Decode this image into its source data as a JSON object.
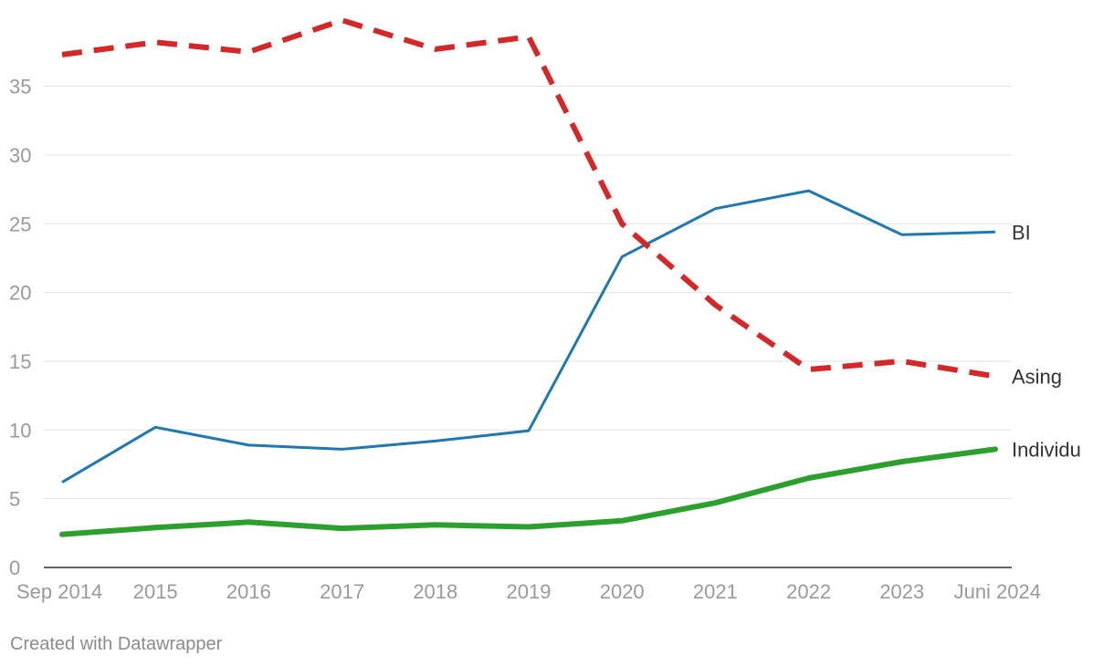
{
  "footer": "Created with Datawrapper",
  "chart_data": {
    "type": "line",
    "title": "",
    "xlabel": "",
    "ylabel": "",
    "ylim": [
      0,
      40
    ],
    "yticks": [
      0,
      5,
      10,
      15,
      20,
      25,
      30,
      35
    ],
    "grid": true,
    "legend": "inline-right",
    "categories": [
      "Sep 2014",
      "2015",
      "2016",
      "2017",
      "2018",
      "2019",
      "2020",
      "2021",
      "2022",
      "2023",
      "Juni 2024"
    ],
    "series": [
      {
        "name": "BI",
        "color": "#1f77b4",
        "style": "solid",
        "values": [
          6.2,
          10.2,
          8.9,
          8.6,
          9.2,
          9.95,
          22.6,
          26.1,
          27.4,
          24.2,
          24.4
        ]
      },
      {
        "name": "Asing",
        "color": "#d62728",
        "style": "dashed",
        "values": [
          37.3,
          38.2,
          37.5,
          39.8,
          37.7,
          38.6,
          25.0,
          19.1,
          14.4,
          15.0,
          13.9
        ]
      },
      {
        "name": "Individu",
        "color": "#2ca02c",
        "style": "solid-thick",
        "values": [
          2.4,
          2.9,
          3.3,
          2.85,
          3.1,
          2.95,
          3.4,
          4.7,
          6.5,
          7.7,
          8.6
        ]
      }
    ]
  }
}
